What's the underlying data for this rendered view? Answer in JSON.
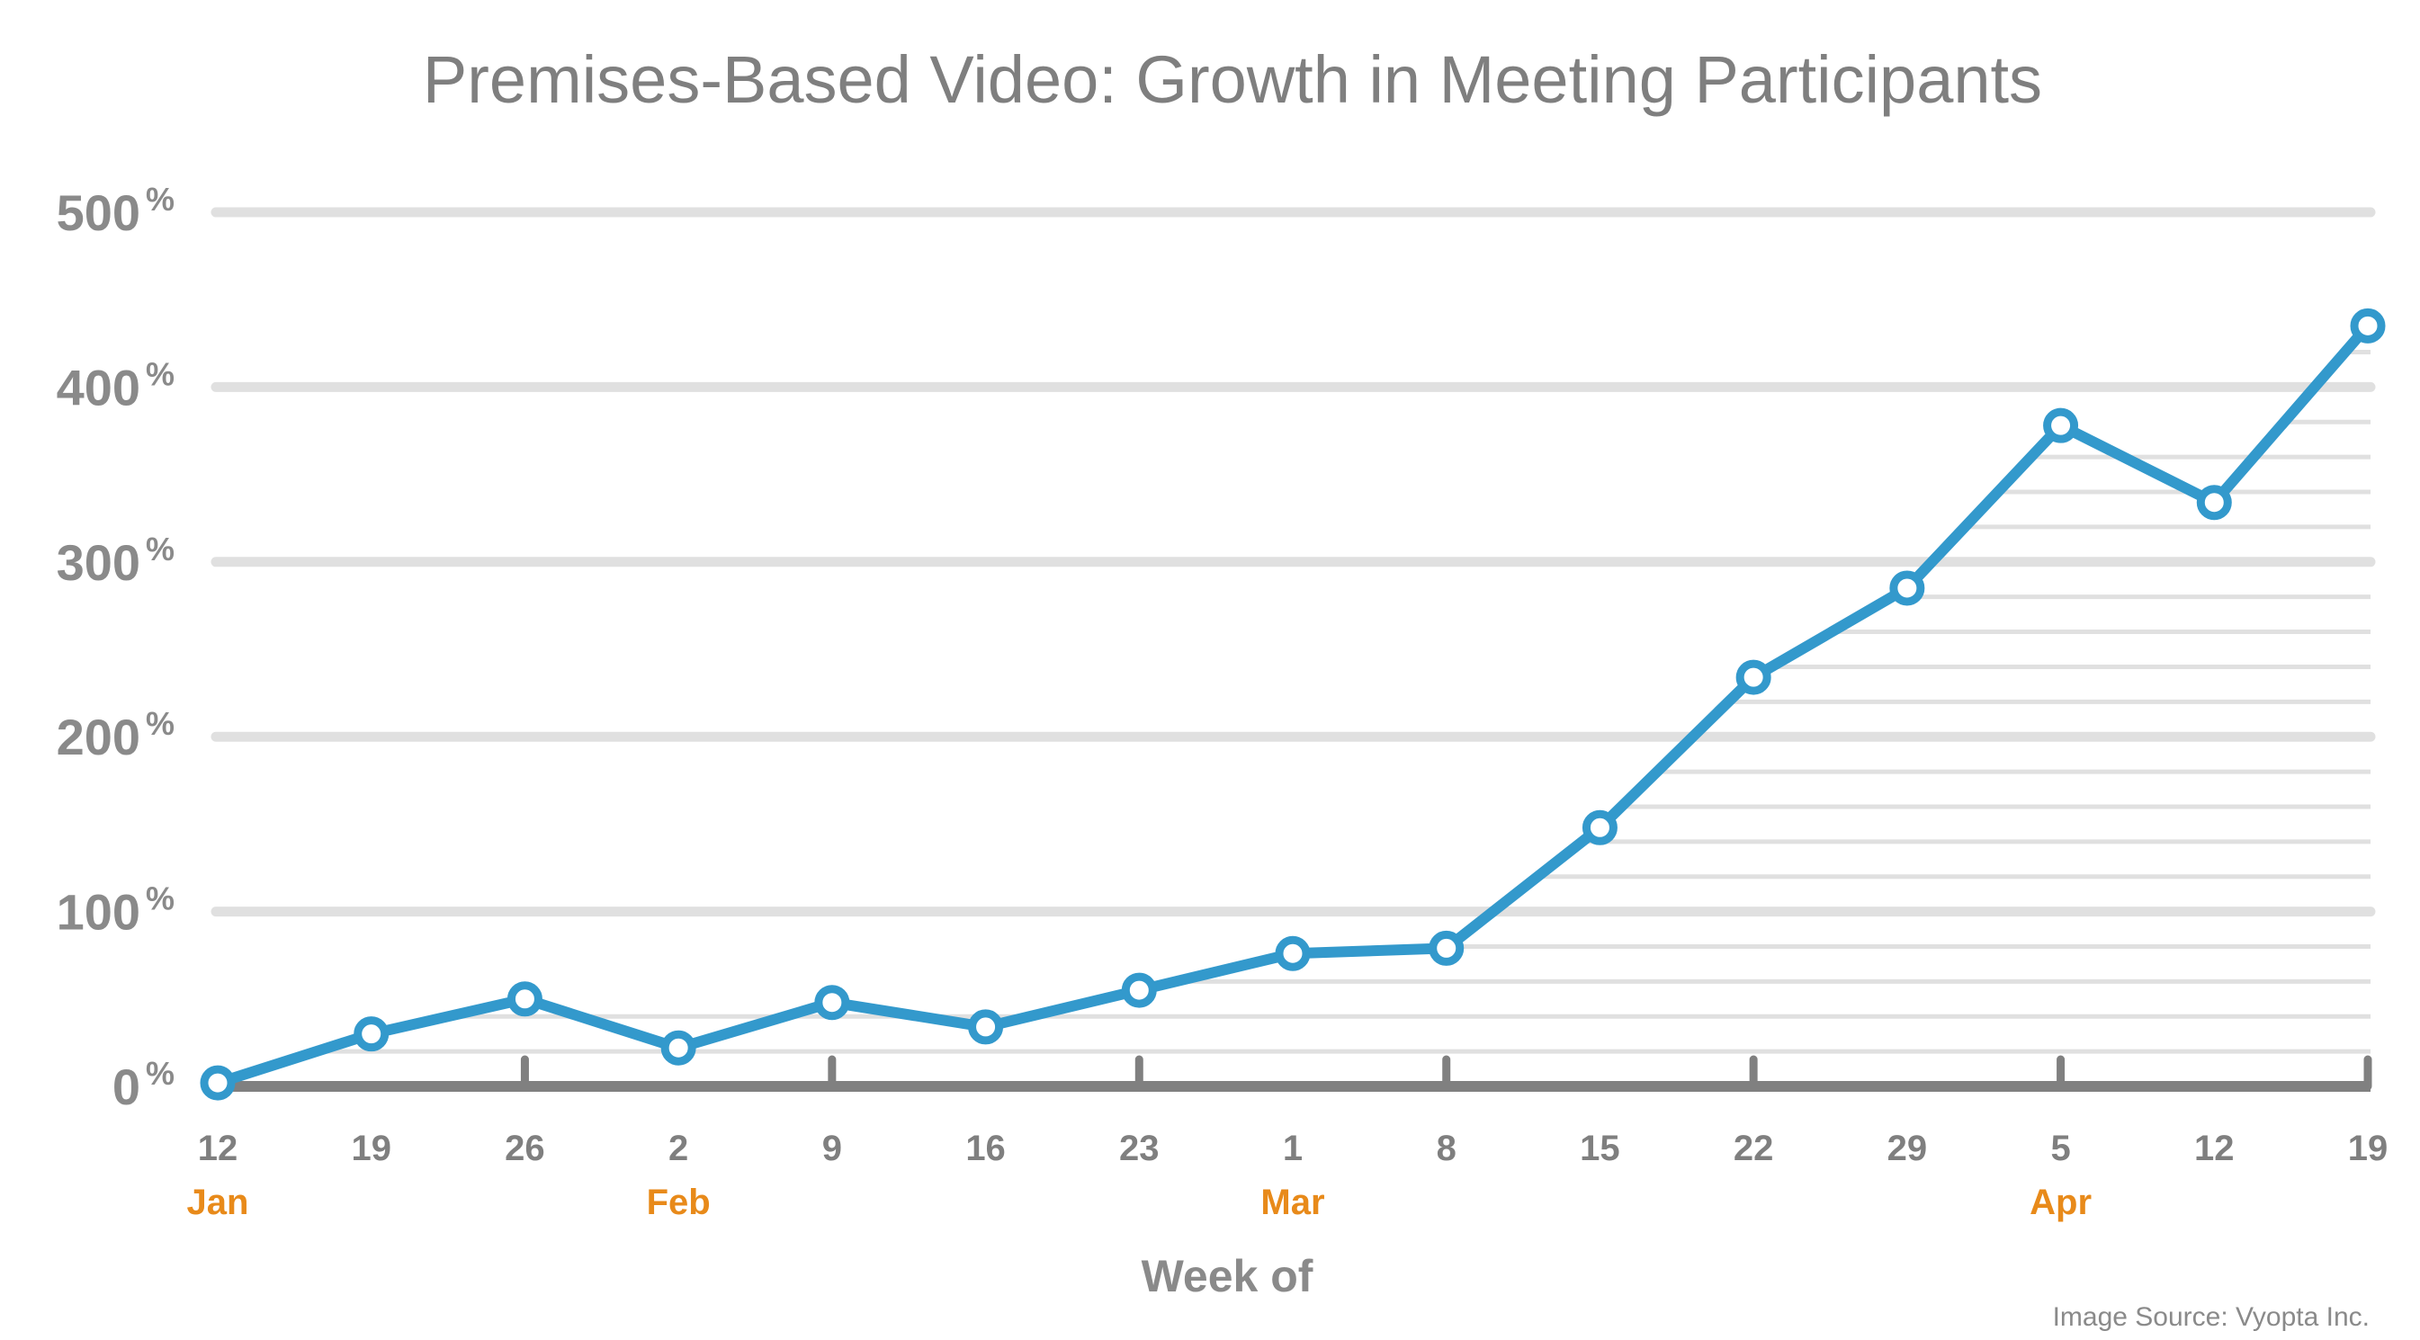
{
  "chart_data": {
    "type": "line",
    "title": "Premises-Based Video: Growth in Meeting Participants",
    "xlabel": "Week of",
    "ylabel": "",
    "source": "Image Source: Vyopta Inc.",
    "ylim": [
      0,
      500
    ],
    "y_ticks": [
      {
        "value": 0,
        "number": "0",
        "unit": "%"
      },
      {
        "value": 100,
        "number": "100",
        "unit": "%"
      },
      {
        "value": 200,
        "number": "200",
        "unit": "%"
      },
      {
        "value": 300,
        "number": "300",
        "unit": "%"
      },
      {
        "value": 400,
        "number": "400",
        "unit": "%"
      },
      {
        "value": 500,
        "number": "500",
        "unit": "%"
      }
    ],
    "fine_gridline_step": 20,
    "grid": true,
    "categories": [
      "12",
      "19",
      "26",
      "2",
      "9",
      "16",
      "23",
      "1",
      "8",
      "15",
      "22",
      "29",
      "5",
      "12",
      "19"
    ],
    "month_labels": [
      {
        "index": 0,
        "label": "Jan"
      },
      {
        "index": 3,
        "label": "Feb"
      },
      {
        "index": 7,
        "label": "Mar"
      },
      {
        "index": 12,
        "label": "Apr"
      }
    ],
    "series": [
      {
        "values": [
          2,
          30,
          50,
          22,
          48,
          34,
          55,
          76,
          79,
          148,
          234,
          285,
          378,
          334,
          435
        ]
      }
    ],
    "colors": {
      "line": "#3399cc",
      "marker_fill": "#ffffff",
      "gridline": "#e0e0e0",
      "axis": "#808080",
      "month": "#e88a1a",
      "text": "#808080"
    }
  }
}
